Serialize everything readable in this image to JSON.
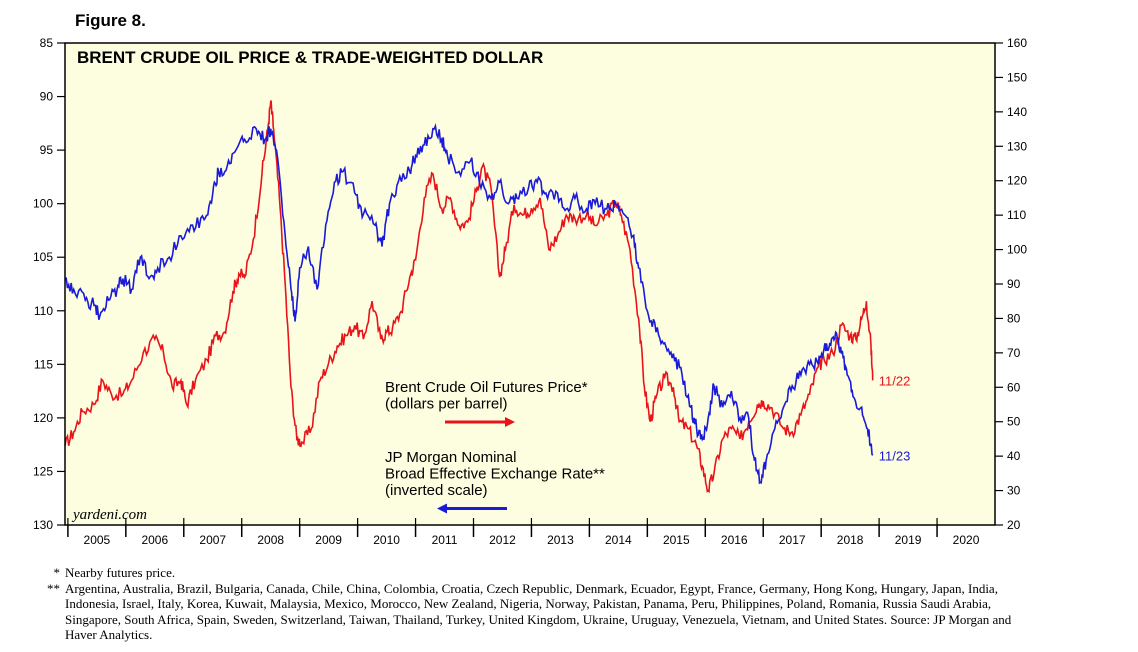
{
  "figure_label": "Figure 8.",
  "colors": {
    "oil": "#e8141a",
    "dollar": "#1a1ad8",
    "plot_bg": "#fdfde0"
  },
  "chart_data": {
    "type": "line",
    "title": "BRENT CRUDE OIL PRICE & TRADE-WEIGHTED DOLLAR",
    "x_tick_labels": [
      "2005",
      "2006",
      "2007",
      "2008",
      "2009",
      "2010",
      "2011",
      "2012",
      "2013",
      "2014",
      "2015",
      "2016",
      "2017",
      "2018",
      "2019",
      "2020"
    ],
    "xlim": [
      2004.95,
      2021.0
    ],
    "left_axis": {
      "ticks": [
        85,
        90,
        95,
        100,
        105,
        110,
        115,
        120,
        125,
        130
      ],
      "range": [
        85,
        130
      ],
      "inverted": true
    },
    "right_axis": {
      "ticks": [
        20,
        30,
        40,
        50,
        60,
        70,
        80,
        90,
        100,
        110,
        120,
        130,
        140,
        150,
        160
      ],
      "range": [
        20,
        160
      ]
    },
    "legend": [
      {
        "label_lines": [
          "Brent Crude Oil Futures Price*",
          "(dollars per barrel)"
        ],
        "arrow": "right",
        "series": "oil"
      },
      {
        "label_lines": [
          "JP Morgan Nominal",
          "Broad Effective Exchange Rate**",
          "(inverted scale)"
        ],
        "arrow": "left",
        "series": "dollar"
      }
    ],
    "watermark": "yardeni.com",
    "series": [
      {
        "name": "Brent Crude Oil Futures Price*",
        "axis": "right",
        "end_label": "11/22",
        "points": [
          [
            2004.95,
            43
          ],
          [
            2005.1,
            47
          ],
          [
            2005.25,
            53
          ],
          [
            2005.45,
            55
          ],
          [
            2005.6,
            62
          ],
          [
            2005.75,
            58
          ],
          [
            2005.95,
            58
          ],
          [
            2006.1,
            62
          ],
          [
            2006.3,
            70
          ],
          [
            2006.5,
            74
          ],
          [
            2006.65,
            70
          ],
          [
            2006.8,
            60
          ],
          [
            2006.95,
            62
          ],
          [
            2007.05,
            55
          ],
          [
            2007.2,
            62
          ],
          [
            2007.4,
            68
          ],
          [
            2007.55,
            75
          ],
          [
            2007.7,
            76
          ],
          [
            2007.85,
            88
          ],
          [
            2007.95,
            93
          ],
          [
            2008.05,
            92
          ],
          [
            2008.2,
            103
          ],
          [
            2008.35,
            122
          ],
          [
            2008.45,
            135
          ],
          [
            2008.5,
            143
          ],
          [
            2008.55,
            135
          ],
          [
            2008.65,
            115
          ],
          [
            2008.75,
            90
          ],
          [
            2008.85,
            60
          ],
          [
            2008.95,
            45
          ],
          [
            2009.05,
            44
          ],
          [
            2009.2,
            48
          ],
          [
            2009.35,
            62
          ],
          [
            2009.5,
            67
          ],
          [
            2009.65,
            72
          ],
          [
            2009.8,
            75
          ],
          [
            2009.95,
            78
          ],
          [
            2010.1,
            74
          ],
          [
            2010.25,
            85
          ],
          [
            2010.4,
            74
          ],
          [
            2010.5,
            76
          ],
          [
            2010.6,
            77
          ],
          [
            2010.75,
            82
          ],
          [
            2010.9,
            92
          ],
          [
            2011.0,
            97
          ],
          [
            2011.15,
            115
          ],
          [
            2011.3,
            122
          ],
          [
            2011.45,
            112
          ],
          [
            2011.6,
            115
          ],
          [
            2011.75,
            107
          ],
          [
            2011.9,
            108
          ],
          [
            2012.05,
            117
          ],
          [
            2012.15,
            124
          ],
          [
            2012.3,
            118
          ],
          [
            2012.45,
            92
          ],
          [
            2012.55,
            100
          ],
          [
            2012.7,
            113
          ],
          [
            2012.85,
            110
          ],
          [
            2013.0,
            112
          ],
          [
            2013.15,
            115
          ],
          [
            2013.3,
            100
          ],
          [
            2013.45,
            104
          ],
          [
            2013.6,
            110
          ],
          [
            2013.75,
            109
          ],
          [
            2013.95,
            110
          ],
          [
            2014.1,
            107
          ],
          [
            2014.3,
            110
          ],
          [
            2014.45,
            114
          ],
          [
            2014.55,
            110
          ],
          [
            2014.7,
            100
          ],
          [
            2014.85,
            80
          ],
          [
            2014.95,
            60
          ],
          [
            2015.05,
            50
          ],
          [
            2015.15,
            57
          ],
          [
            2015.3,
            63
          ],
          [
            2015.45,
            60
          ],
          [
            2015.55,
            50
          ],
          [
            2015.7,
            48
          ],
          [
            2015.85,
            43
          ],
          [
            2015.95,
            37
          ],
          [
            2016.05,
            30
          ],
          [
            2016.15,
            35
          ],
          [
            2016.3,
            45
          ],
          [
            2016.45,
            48
          ],
          [
            2016.6,
            45
          ],
          [
            2016.75,
            50
          ],
          [
            2016.9,
            55
          ],
          [
            2017.0,
            56
          ],
          [
            2017.15,
            54
          ],
          [
            2017.35,
            48
          ],
          [
            2017.5,
            47
          ],
          [
            2017.65,
            52
          ],
          [
            2017.8,
            58
          ],
          [
            2017.95,
            66
          ],
          [
            2018.05,
            68
          ],
          [
            2018.2,
            70
          ],
          [
            2018.35,
            78
          ],
          [
            2018.5,
            75
          ],
          [
            2018.6,
            74
          ],
          [
            2018.7,
            80
          ],
          [
            2018.78,
            85
          ],
          [
            2018.86,
            72
          ],
          [
            2018.89,
            62
          ]
        ]
      },
      {
        "name": "JP Morgan Nominal Broad Effective Exchange Rate**",
        "axis": "left",
        "end_label": "11/23",
        "points": [
          [
            2004.95,
            107
          ],
          [
            2005.1,
            108
          ],
          [
            2005.3,
            109
          ],
          [
            2005.45,
            109.5
          ],
          [
            2005.55,
            110.5
          ],
          [
            2005.7,
            109
          ],
          [
            2005.85,
            108
          ],
          [
            2005.95,
            107
          ],
          [
            2006.1,
            108
          ],
          [
            2006.25,
            105
          ],
          [
            2006.4,
            107
          ],
          [
            2006.55,
            106
          ],
          [
            2006.75,
            105
          ],
          [
            2006.95,
            103
          ],
          [
            2007.15,
            102
          ],
          [
            2007.35,
            101.5
          ],
          [
            2007.5,
            99
          ],
          [
            2007.6,
            97
          ],
          [
            2007.75,
            96.5
          ],
          [
            2007.9,
            95
          ],
          [
            2008.05,
            94
          ],
          [
            2008.25,
            93
          ],
          [
            2008.4,
            94
          ],
          [
            2008.5,
            93
          ],
          [
            2008.6,
            95
          ],
          [
            2008.75,
            103
          ],
          [
            2008.85,
            108
          ],
          [
            2008.92,
            111
          ],
          [
            2009.0,
            106
          ],
          [
            2009.15,
            104
          ],
          [
            2009.3,
            108
          ],
          [
            2009.45,
            102
          ],
          [
            2009.6,
            98
          ],
          [
            2009.75,
            97
          ],
          [
            2009.95,
            99
          ],
          [
            2010.1,
            101
          ],
          [
            2010.3,
            102
          ],
          [
            2010.42,
            104
          ],
          [
            2010.55,
            100
          ],
          [
            2010.7,
            98
          ],
          [
            2010.9,
            97
          ],
          [
            2011.0,
            95.5
          ],
          [
            2011.15,
            94.5
          ],
          [
            2011.3,
            93
          ],
          [
            2011.45,
            94
          ],
          [
            2011.55,
            95.5
          ],
          [
            2011.75,
            97
          ],
          [
            2011.95,
            96
          ],
          [
            2012.1,
            98
          ],
          [
            2012.3,
            99.5
          ],
          [
            2012.45,
            98
          ],
          [
            2012.6,
            100
          ],
          [
            2012.75,
            99.5
          ],
          [
            2012.95,
            98.5
          ],
          [
            2013.1,
            98
          ],
          [
            2013.25,
            99
          ],
          [
            2013.45,
            99
          ],
          [
            2013.6,
            100.5
          ],
          [
            2013.75,
            99.5
          ],
          [
            2013.95,
            100.5
          ],
          [
            2014.1,
            100
          ],
          [
            2014.3,
            100.5
          ],
          [
            2014.45,
            100
          ],
          [
            2014.6,
            101
          ],
          [
            2014.75,
            103
          ],
          [
            2014.85,
            106
          ],
          [
            2015.0,
            110
          ],
          [
            2015.15,
            112
          ],
          [
            2015.3,
            113
          ],
          [
            2015.45,
            114
          ],
          [
            2015.6,
            116
          ],
          [
            2015.75,
            119
          ],
          [
            2015.85,
            121
          ],
          [
            2015.95,
            122
          ],
          [
            2016.05,
            120
          ],
          [
            2016.15,
            117
          ],
          [
            2016.3,
            119
          ],
          [
            2016.45,
            117.5
          ],
          [
            2016.6,
            120
          ],
          [
            2016.75,
            120
          ],
          [
            2016.85,
            124
          ],
          [
            2016.95,
            126
          ],
          [
            2017.05,
            124
          ],
          [
            2017.2,
            121
          ],
          [
            2017.35,
            119
          ],
          [
            2017.5,
            117
          ],
          [
            2017.65,
            116
          ],
          [
            2017.8,
            115
          ],
          [
            2017.95,
            115
          ],
          [
            2018.05,
            113.5
          ],
          [
            2018.15,
            113
          ],
          [
            2018.25,
            112
          ],
          [
            2018.35,
            114
          ],
          [
            2018.45,
            116
          ],
          [
            2018.55,
            118
          ],
          [
            2018.7,
            119
          ],
          [
            2018.8,
            121
          ],
          [
            2018.89,
            123.5
          ]
        ]
      }
    ]
  },
  "footnotes": [
    {
      "mark": "*",
      "text": "Nearby futures price."
    },
    {
      "mark": "**",
      "text": "Argentina, Australia, Brazil, Bulgaria, Canada, Chile, China, Colombia, Croatia, Czech Republic, Denmark, Ecuador, Egypt, France, Germany, Hong Kong, Hungary, Japan, India, Indonesia, Israel, Italy, Korea, Kuwait, Malaysia, Mexico, Morocco, New Zealand, Nigeria, Norway, Pakistan, Panama, Peru, Philippines, Poland, Romania, Russia Saudi Arabia, Singapore, South Africa, Spain, Sweden, Switzerland, Taiwan, Thailand, Turkey, United Kingdom, Ukraine, Uruguay, Venezuela, Vietnam, and United States. Source: JP Morgan and Haver Analytics."
    }
  ]
}
